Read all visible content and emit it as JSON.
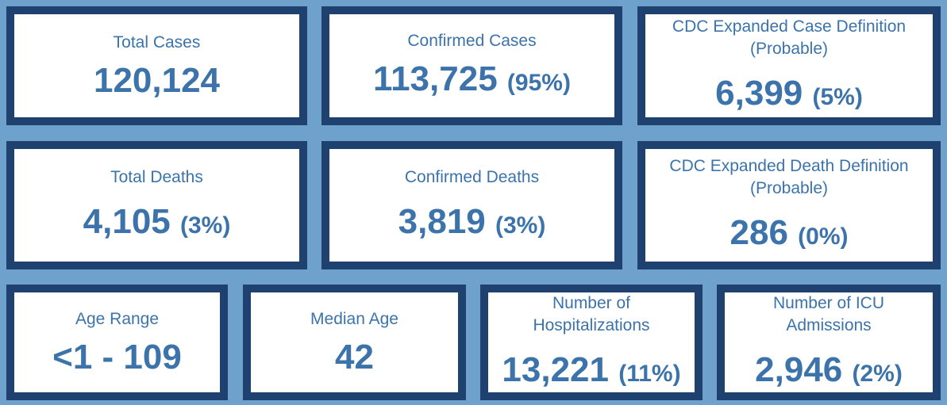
{
  "cards": {
    "total_cases": {
      "label": "Total Cases",
      "value": "120,124",
      "pct": ""
    },
    "confirmed_cases": {
      "label": "Confirmed Cases",
      "value": "113,725",
      "pct": "(95%)"
    },
    "probable_cases": {
      "label_line1": "CDC Expanded Case Definition",
      "label_line2": "(Probable)",
      "value": "6,399",
      "pct": "(5%)"
    },
    "total_deaths": {
      "label": "Total Deaths",
      "value": "4,105",
      "pct": "(3%)"
    },
    "confirmed_deaths": {
      "label": "Confirmed Deaths",
      "value": "3,819",
      "pct": "(3%)"
    },
    "probable_deaths": {
      "label_line1": "CDC Expanded Death Definition",
      "label_line2": "(Probable)",
      "value": "286",
      "pct": "(0%)"
    },
    "age_range": {
      "label": "Age Range",
      "value": "<1 - 109"
    },
    "median_age": {
      "label": "Median Age",
      "value": "42"
    },
    "hospitalizations": {
      "label_line1": "Number of",
      "label_line2": "Hospitalizations",
      "value": "13,221",
      "pct": "(11%)"
    },
    "icu_admissions": {
      "label_line1": "Number of ICU",
      "label_line2": "Admissions",
      "value": "2,946",
      "pct": "(2%)"
    }
  },
  "colors": {
    "background": "#6fa1cd",
    "card_border": "#1e416f",
    "text": "#3b73aa"
  }
}
